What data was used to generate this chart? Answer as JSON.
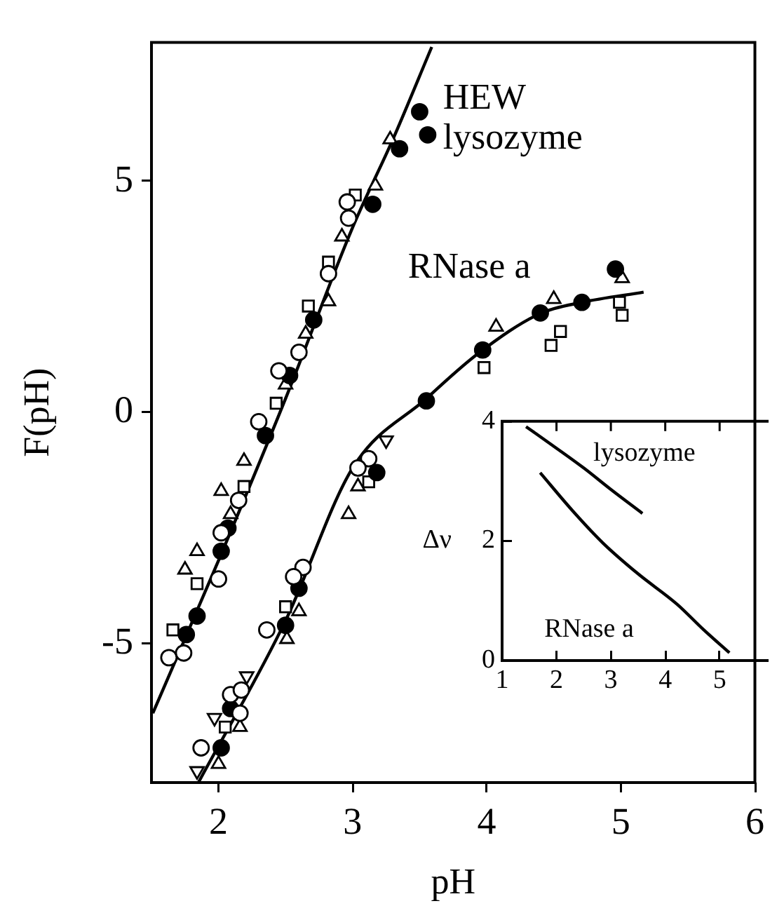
{
  "chart_data": [
    {
      "type": "scatter",
      "xlabel": "pH",
      "ylabel": "F(pH)",
      "xlim": [
        1.5,
        6
      ],
      "ylim": [
        -8,
        8
      ],
      "xticks": [
        2,
        3,
        4,
        5,
        6
      ],
      "yticks": [
        -5,
        0,
        5
      ],
      "grid": false,
      "series": [
        {
          "name": "HEW lysozyme",
          "type": "line",
          "marker": "none",
          "color": "#000000",
          "x": [
            1.51,
            2.0,
            2.5,
            3.0,
            3.3,
            3.59
          ],
          "values": [
            -6.5,
            -3.2,
            0.3,
            4.0,
            5.9,
            7.9
          ]
        },
        {
          "name": "RNase a",
          "type": "line",
          "marker": "none",
          "color": "#000000",
          "x": [
            1.85,
            2.5,
            3.0,
            3.55,
            3.93,
            4.4,
            4.71,
            5.17
          ],
          "values": [
            -8.0,
            -4.5,
            -1.2,
            0.3,
            1.26,
            2.14,
            2.38,
            2.6
          ]
        },
        {
          "type": "scatter",
          "marker": "circle",
          "color": "#ffffff",
          "x": [
            2.96,
            2.97,
            2.82,
            2.6,
            2.45,
            2.3,
            2.15,
            2.0,
            1.63,
            1.74,
            2.02,
            3.12,
            3.04,
            2.63,
            2.56,
            2.36,
            2.09,
            2.17,
            1.87,
            2.16
          ],
          "values": [
            4.55,
            4.2,
            3.0,
            1.3,
            0.9,
            -0.2,
            -1.9,
            -3.6,
            -5.3,
            -5.2,
            -2.6,
            -1.0,
            -1.2,
            -3.35,
            -3.55,
            -4.7,
            -6.1,
            -6.0,
            -7.25,
            -6.5
          ]
        },
        {
          "type": "scatter",
          "marker": "circle",
          "color": "#000000",
          "x": [
            3.35,
            3.15,
            2.71,
            2.53,
            2.35,
            2.07,
            2.02,
            1.84,
            1.76,
            3.5,
            3.56,
            3.18,
            2.6,
            2.5,
            2.09,
            2.02,
            3.55,
            3.97,
            4.71,
            4.96,
            4.4
          ],
          "values": [
            5.7,
            4.5,
            2.0,
            0.8,
            -0.5,
            -2.5,
            -3.0,
            -4.4,
            -4.8,
            6.5,
            6.0,
            -1.3,
            -3.8,
            -4.6,
            -6.4,
            -7.25,
            0.25,
            1.35,
            2.38,
            3.1,
            2.15
          ]
        },
        {
          "type": "scatter",
          "marker": "square",
          "color": "#ffffff",
          "x": [
            3.02,
            2.82,
            2.67,
            2.43,
            2.19,
            1.84,
            1.66,
            3.12,
            2.5,
            2.05,
            3.98,
            4.55,
            4.48,
            5.01,
            4.99
          ],
          "values": [
            4.7,
            3.25,
            2.3,
            0.2,
            -1.6,
            -3.7,
            -4.7,
            -1.5,
            -4.2,
            -6.8,
            0.97,
            1.75,
            1.45,
            2.1,
            2.38
          ]
        },
        {
          "type": "scatter",
          "marker": "triangle",
          "color": "#ffffff",
          "x": [
            3.17,
            2.92,
            2.82,
            2.65,
            2.5,
            2.19,
            2.02,
            2.09,
            1.84,
            1.75,
            3.28,
            3.04,
            2.97,
            2.51,
            2.6,
            2.16,
            2.0,
            4.07,
            4.5,
            5.01
          ],
          "values": [
            4.9,
            3.8,
            2.4,
            1.7,
            0.6,
            -1.05,
            -1.7,
            -2.2,
            -3.0,
            -3.4,
            5.9,
            -1.6,
            -2.2,
            -4.9,
            -4.3,
            -6.8,
            -7.6,
            1.85,
            2.45,
            2.9
          ]
        },
        {
          "type": "scatter",
          "marker": "triangle-down",
          "color": "#ffffff",
          "x": [
            3.25,
            2.21,
            1.97,
            1.84
          ],
          "values": [
            -0.6,
            -5.7,
            -6.6,
            -7.75
          ]
        }
      ]
    },
    {
      "type": "line",
      "ylabel": "Δν",
      "xlim": [
        1,
        5.9
      ],
      "ylim": [
        0,
        4
      ],
      "xticks": [
        1,
        2,
        3,
        4,
        5
      ],
      "yticks": [
        0,
        2,
        4
      ],
      "grid": false,
      "series": [
        {
          "name": "lysozyme",
          "color": "#000000",
          "x": [
            1.44,
            2.0,
            2.5,
            3.0,
            3.58
          ],
          "values": [
            3.91,
            3.55,
            3.22,
            2.86,
            2.46
          ]
        },
        {
          "name": "RNase a",
          "color": "#000000",
          "x": [
            1.7,
            2.3,
            2.86,
            3.5,
            4.22,
            4.7,
            5.18
          ],
          "values": [
            3.14,
            2.5,
            1.96,
            1.45,
            0.94,
            0.52,
            0.13
          ]
        }
      ]
    }
  ]
}
